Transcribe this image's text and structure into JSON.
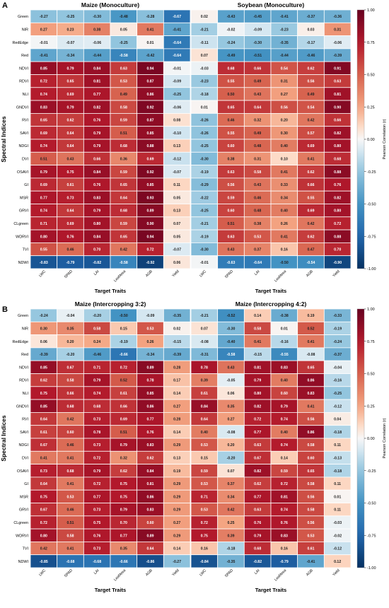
{
  "figure": {
    "row_labels": [
      "Green",
      "NIR",
      "RedEdge",
      "Red",
      "NDVI",
      "RDVI",
      "NLI",
      "GNDVI",
      "RVI",
      "SAVI",
      "NDGI",
      "DVI",
      "OSAVI",
      "GI",
      "MSR",
      "GRVI",
      "CLgreen",
      "WDRVI",
      "TVI",
      "NDWI"
    ],
    "col_labels": [
      "LWC",
      "SPAD",
      "LAI",
      "LeafArea",
      "AGB",
      "Yield"
    ],
    "colorscale": {
      "min": -1.0,
      "max": 1.0,
      "low_color": "#053061",
      "mid_color": "#f7f7f7",
      "high_color": "#67001f",
      "colormap": "RdBu_r"
    }
  },
  "panels": [
    {
      "letter": "A",
      "xlabel": "Target Traits",
      "ylabel": "Spectral Indices",
      "colorbar_label": "Pearson Correlation (r)",
      "colorbar_ticks": [
        "1.00",
        "0.75",
        "0.50",
        "0.25",
        "0.00",
        "-0.25",
        "-0.50",
        "-0.75",
        "-1.00"
      ]
    },
    {
      "letter": "B",
      "xlabel": "Target Traits",
      "ylabel": "Spectral Indices",
      "colorbar_label": "Pearson Correlation (r)",
      "colorbar_ticks": [
        "1.00",
        "0.75",
        "0.50",
        "0.25",
        "0.00",
        "-0.25",
        "-0.50",
        "-0.75",
        "-1.00"
      ]
    }
  ],
  "chart_data": [
    {
      "type": "heatmap",
      "title": "Maize (Monoculture)",
      "xlabel": "Target Traits",
      "ylabel": "Spectral Indices",
      "values": [
        [
          -0.27,
          -0.25,
          -0.3,
          -0.48,
          -0.28,
          -0.67
        ],
        [
          0.27,
          0.23,
          0.38,
          0.05,
          0.41,
          -0.41
        ],
        [
          -0.01,
          -0.07,
          -0.06,
          -0.25,
          0.01,
          -0.64
        ],
        [
          -0.41,
          -0.34,
          -0.44,
          -0.58,
          -0.42,
          -0.64
        ],
        [
          0.85,
          0.79,
          0.84,
          0.63,
          0.94,
          -0.01
        ],
        [
          0.72,
          0.65,
          0.81,
          0.53,
          0.87,
          -0.09
        ],
        [
          0.74,
          0.69,
          0.77,
          0.49,
          0.86,
          -0.25
        ],
        [
          0.83,
          0.79,
          0.82,
          0.58,
          0.92,
          -0.06
        ],
        [
          0.65,
          0.62,
          0.76,
          0.59,
          0.87,
          0.08
        ],
        [
          0.69,
          0.64,
          0.79,
          0.51,
          0.85,
          -0.1
        ],
        [
          0.74,
          0.64,
          0.79,
          0.68,
          0.88,
          0.13
        ],
        [
          0.51,
          0.43,
          0.66,
          0.36,
          0.69,
          -0.12
        ],
        [
          0.79,
          0.75,
          0.84,
          0.59,
          0.92,
          -0.07
        ],
        [
          0.69,
          0.61,
          0.76,
          0.65,
          0.85,
          0.11
        ],
        [
          0.77,
          0.73,
          0.83,
          0.64,
          0.93,
          0.05
        ],
        [
          0.74,
          0.64,
          0.79,
          0.68,
          0.89,
          0.13
        ],
        [
          0.71,
          0.69,
          0.8,
          0.59,
          0.9,
          0.07
        ],
        [
          0.8,
          0.76,
          0.84,
          0.65,
          0.94,
          0.05
        ],
        [
          0.55,
          0.46,
          0.7,
          0.42,
          0.72,
          -0.07
        ],
        [
          -0.83,
          -0.79,
          -0.82,
          -0.58,
          -0.92,
          0.06
        ]
      ]
    },
    {
      "type": "heatmap",
      "title": "Soybean (Monoculture)",
      "xlabel": "Target Traits",
      "ylabel": "",
      "values": [
        [
          0.02,
          -0.43,
          -0.45,
          -0.41,
          -0.37,
          -0.36
        ],
        [
          -0.21,
          -0.02,
          -0.09,
          -0.23,
          0.03,
          0.31
        ],
        [
          -0.11,
          -0.24,
          -0.3,
          -0.35,
          -0.17,
          -0.06
        ],
        [
          0.07,
          -0.49,
          -0.51,
          -0.44,
          -0.46,
          -0.39
        ],
        [
          -0.03,
          0.68,
          0.66,
          0.54,
          0.62,
          0.91
        ],
        [
          -0.23,
          0.55,
          0.49,
          0.31,
          0.56,
          0.63
        ],
        [
          -0.18,
          0.5,
          0.43,
          0.27,
          0.49,
          0.81
        ],
        [
          0.01,
          0.65,
          0.64,
          0.56,
          0.54,
          0.9
        ],
        [
          -0.26,
          0.46,
          0.32,
          0.2,
          0.42,
          0.66
        ],
        [
          -0.26,
          0.55,
          0.49,
          0.3,
          0.57,
          0.82
        ],
        [
          -0.25,
          0.6,
          0.48,
          0.4,
          0.69,
          0.8
        ],
        [
          -0.3,
          0.38,
          0.31,
          0.1,
          0.41,
          0.68
        ],
        [
          -0.19,
          0.63,
          0.58,
          0.41,
          0.62,
          0.88
        ],
        [
          -0.29,
          0.56,
          0.43,
          0.33,
          0.66,
          0.76
        ],
        [
          -0.22,
          0.59,
          0.46,
          0.34,
          0.55,
          0.82
        ],
        [
          -0.25,
          0.6,
          0.48,
          0.4,
          0.69,
          0.8
        ],
        [
          -0.21,
          0.51,
          0.38,
          0.26,
          0.42,
          0.72
        ],
        [
          -0.19,
          0.63,
          0.53,
          0.41,
          0.62,
          0.88
        ],
        [
          -0.3,
          0.43,
          0.37,
          0.16,
          0.47,
          0.7
        ],
        [
          -0.01,
          -0.63,
          -0.64,
          -0.5,
          -0.54,
          -0.9
        ]
      ]
    },
    {
      "type": "heatmap",
      "title": "Maize (Intercropping 3:2)",
      "xlabel": "Target Traits",
      "ylabel": "Spectral Indices",
      "values": [
        [
          -0.24,
          -0.04,
          -0.2,
          -0.5,
          -0.09,
          -0.35
        ],
        [
          0.3,
          0.35,
          0.58,
          0.15,
          0.53,
          0.02
        ],
        [
          0.06,
          0.2,
          0.24,
          -0.19,
          0.26,
          -0.15
        ],
        [
          -0.39,
          -0.2,
          -0.46,
          -0.66,
          -0.34,
          -0.39
        ],
        [
          0.85,
          0.67,
          0.71,
          0.72,
          0.89,
          0.28
        ],
        [
          0.62,
          0.58,
          0.79,
          0.52,
          0.78,
          0.17
        ],
        [
          0.75,
          0.66,
          0.74,
          0.61,
          0.85,
          0.14
        ],
        [
          0.85,
          0.68,
          0.68,
          0.66,
          0.86,
          0.27
        ],
        [
          0.64,
          0.42,
          0.73,
          0.69,
          0.77,
          0.28
        ],
        [
          0.61,
          0.6,
          0.78,
          0.51,
          0.76,
          0.14
        ],
        [
          0.67,
          0.46,
          0.73,
          0.79,
          0.83,
          0.29
        ],
        [
          0.41,
          0.41,
          0.72,
          0.32,
          0.62,
          0.13
        ],
        [
          0.73,
          0.68,
          0.79,
          0.62,
          0.84,
          0.19
        ],
        [
          0.64,
          0.41,
          0.72,
          0.75,
          0.81,
          0.29
        ],
        [
          0.75,
          0.53,
          0.77,
          0.75,
          0.86,
          0.29
        ],
        [
          0.67,
          0.46,
          0.73,
          0.79,
          0.83,
          0.29
        ],
        [
          0.72,
          0.51,
          0.75,
          0.7,
          0.6,
          0.27
        ],
        [
          0.8,
          0.58,
          0.76,
          0.77,
          0.89,
          0.29
        ],
        [
          0.42,
          0.41,
          0.73,
          0.35,
          0.64,
          0.14
        ],
        [
          -0.85,
          -0.68,
          -0.68,
          -0.66,
          -0.86,
          -0.27
        ]
      ]
    },
    {
      "type": "heatmap",
      "title": "Maize (Intercropping 4:2)",
      "xlabel": "Target Traits",
      "ylabel": "",
      "values": [
        [
          -0.21,
          -0.52,
          0.14,
          -0.38,
          0.19,
          -0.33
        ],
        [
          0.07,
          -0.3,
          0.58,
          0.01,
          0.52,
          -0.19
        ],
        [
          -0.08,
          -0.4,
          0.41,
          -0.16,
          0.41,
          -0.24
        ],
        [
          -0.31,
          -0.58,
          -0.15,
          -0.55,
          -0.08,
          -0.37
        ],
        [
          0.78,
          0.43,
          0.81,
          0.83,
          0.65,
          -0.04
        ],
        [
          0.39,
          -0.05,
          0.79,
          0.4,
          0.86,
          -0.16
        ],
        [
          0.61,
          0.06,
          0.8,
          0.6,
          0.83,
          -0.25
        ],
        [
          0.84,
          0.35,
          0.82,
          0.79,
          0.41,
          -0.12
        ],
        [
          0.64,
          0.27,
          0.72,
          0.74,
          0.56,
          0.04
        ],
        [
          0.4,
          -0.08,
          0.77,
          0.4,
          0.86,
          -0.18
        ],
        [
          0.53,
          0.2,
          0.63,
          0.74,
          0.58,
          0.11
        ],
        [
          0.15,
          -0.2,
          0.67,
          0.14,
          0.6,
          -0.13
        ],
        [
          0.59,
          0.07,
          0.82,
          0.59,
          0.65,
          -0.18
        ],
        [
          0.53,
          0.37,
          0.62,
          0.72,
          0.58,
          0.11
        ],
        [
          0.71,
          0.34,
          0.77,
          0.81,
          0.56,
          0.01
        ],
        [
          0.53,
          0.42,
          0.63,
          0.74,
          0.58,
          0.11
        ],
        [
          0.72,
          0.25,
          0.76,
          0.76,
          0.56,
          -0.03
        ],
        [
          0.75,
          0.39,
          0.79,
          0.83,
          0.53,
          -0.02
        ],
        [
          0.16,
          -0.18,
          0.68,
          0.16,
          0.61,
          -0.12
        ],
        [
          -0.84,
          -0.35,
          -0.82,
          -0.79,
          -0.41,
          0.12
        ]
      ]
    }
  ]
}
